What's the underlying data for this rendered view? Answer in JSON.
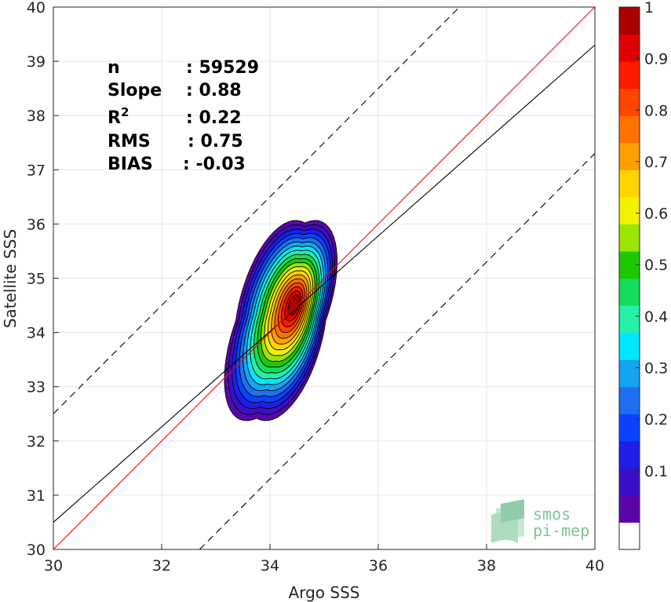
{
  "chart_data": {
    "type": "contour-density-scatter",
    "xlabel": "Argo SSS",
    "ylabel": "Satellite SSS",
    "xlim": [
      30,
      40
    ],
    "ylim": [
      30,
      40
    ],
    "xticks": [
      30,
      32,
      34,
      36,
      38,
      40
    ],
    "yticks": [
      30,
      31,
      32,
      33,
      34,
      35,
      36,
      37,
      38,
      39,
      40
    ],
    "grid": true,
    "stats": [
      {
        "label": "n",
        "value": ": 59529"
      },
      {
        "label": "Slope",
        "value": ": 0.88"
      },
      {
        "label": "R",
        "sup": "2",
        "value": ": 0.22"
      },
      {
        "label": "RMS",
        "value": ": 0.75"
      },
      {
        "label": "BIAS",
        "value": ": -0.03"
      }
    ],
    "lines": {
      "identity": {
        "slope": 1,
        "intercept": 0,
        "color": "#ff0000"
      },
      "fit": {
        "slope": 0.88,
        "intercept": 4.1,
        "color": "#000000"
      },
      "upper_envelope": {
        "slope": 1,
        "intercept": 2.5,
        "dash": true
      },
      "lower_envelope": {
        "slope": 1,
        "intercept": -2.7,
        "dash": true
      }
    },
    "density_contours": {
      "center": [
        34.2,
        34.22
      ],
      "levels": [
        0.05,
        0.1,
        0.15,
        0.2,
        0.25,
        0.3,
        0.35,
        0.4,
        0.45,
        0.5,
        0.55,
        0.6,
        0.65,
        0.7,
        0.75,
        0.8,
        0.85,
        0.9,
        0.95
      ]
    },
    "colorbar": {
      "ticks": [
        "0.1",
        "0.2",
        "0.3",
        "0.4",
        "0.5",
        "0.6",
        "0.7",
        "0.8",
        "0.9",
        "1"
      ],
      "colors": [
        "#5a06aa",
        "#3b0fc8",
        "#1f1ee8",
        "#0a43ff",
        "#1f6ff0",
        "#15a4f0",
        "#00e6ff",
        "#25f0a8",
        "#13dd5a",
        "#1ec800",
        "#9be600",
        "#f2f200",
        "#ffd400",
        "#ff9f00",
        "#ff7200",
        "#ff4500",
        "#ff1a00",
        "#e00000",
        "#aa0000",
        "#7f0000"
      ]
    }
  },
  "logo": {
    "line1": "smos",
    "line2": "pi-mep"
  }
}
